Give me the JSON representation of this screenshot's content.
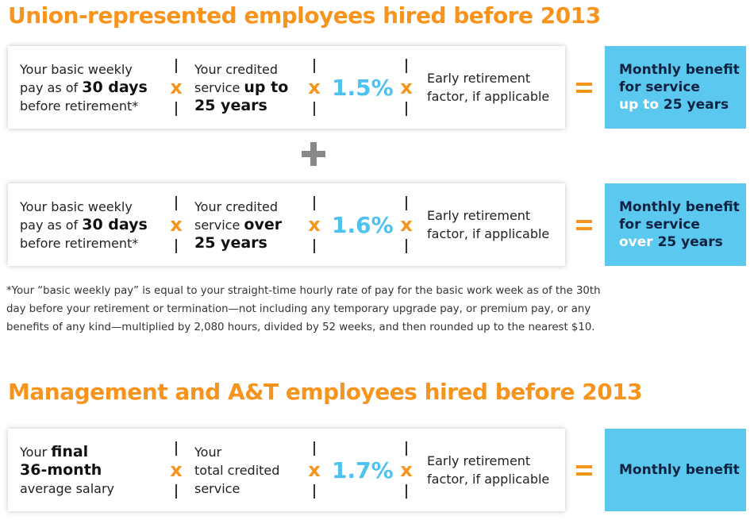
{
  "symbols": {
    "times": "x"
  },
  "sections": [
    {
      "title": "Union-represented employees hired before 2013",
      "rows": [
        {
          "pay": [
            [
              {
                "text": "Your basic weekly"
              }
            ],
            [
              {
                "text": "pay as of "
              },
              {
                "text": "30 days",
                "bold": true
              }
            ],
            [
              {
                "text": "before retirement*"
              }
            ]
          ],
          "service": [
            [
              {
                "text": "Your credited"
              }
            ],
            [
              {
                "text": "service "
              },
              {
                "text": "up to",
                "bold": true
              }
            ],
            [
              {
                "text": "25 years",
                "bold": true
              }
            ]
          ],
          "rate": "1.5%",
          "factor": [
            [
              {
                "text": "Early retirement"
              }
            ],
            [
              {
                "text": "factor, if applicable"
              }
            ]
          ],
          "benefit": [
            [
              {
                "text": "Monthly benefit"
              }
            ],
            [
              {
                "text": "for service"
              }
            ],
            [
              {
                "text": "up to ",
                "color": "#ffffff"
              },
              {
                "text": "25 years"
              }
            ]
          ]
        },
        {
          "pay": [
            [
              {
                "text": "Your basic weekly"
              }
            ],
            [
              {
                "text": "pay as of "
              },
              {
                "text": "30 days",
                "bold": true
              }
            ],
            [
              {
                "text": "before retirement*"
              }
            ]
          ],
          "service": [
            [
              {
                "text": "Your credited"
              }
            ],
            [
              {
                "text": "service "
              },
              {
                "text": "over",
                "bold": true
              }
            ],
            [
              {
                "text": "25 years",
                "bold": true
              }
            ]
          ],
          "rate": "1.6%",
          "factor": [
            [
              {
                "text": "Early retirement"
              }
            ],
            [
              {
                "text": "factor, if applicable"
              }
            ]
          ],
          "benefit": [
            [
              {
                "text": "Monthly benefit"
              }
            ],
            [
              {
                "text": "for service"
              }
            ],
            [
              {
                "text": "over ",
                "color": "#ffffff"
              },
              {
                "text": "25 years"
              }
            ]
          ]
        }
      ],
      "note": [
        "*Your “basic weekly pay” is equal to your straight-time hourly rate of pay for the basic work week as of the 30th",
        "day before your retirement or termination—not including any temporary upgrade pay, or premium pay, or any",
        "benefits of any kind—multiplied by 2,080 hours, divided by 52 weeks, and then rounded up to the nearest $10."
      ]
    },
    {
      "title": "Management and A&T employees hired before 2013",
      "rows": [
        {
          "pay": [
            [
              {
                "text": "Your "
              },
              {
                "text": "final",
                "bold": true
              }
            ],
            [
              {
                "text": "36-month",
                "bold": true
              }
            ],
            [
              {
                "text": "average salary"
              }
            ]
          ],
          "service": [
            [
              {
                "text": "Your"
              }
            ],
            [
              {
                "text": "total credited"
              }
            ],
            [
              {
                "text": "service"
              }
            ]
          ],
          "rate": "1.7%",
          "factor": [
            [
              {
                "text": "Early retirement"
              }
            ],
            [
              {
                "text": "factor, if applicable"
              }
            ]
          ],
          "benefit": [
            [
              {
                "text": "Monthly benefit"
              }
            ]
          ]
        }
      ]
    }
  ]
}
